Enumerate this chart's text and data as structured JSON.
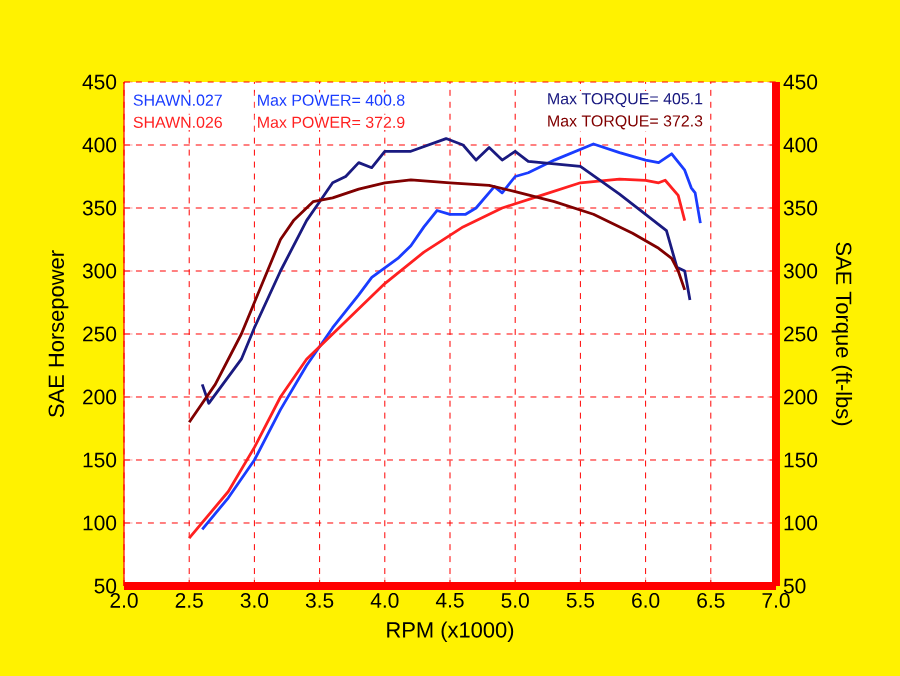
{
  "chart_data": {
    "type": "line",
    "xlabel": "RPM (x1000)",
    "ylabel": "SAE Horsepower",
    "y2label": "SAE Torque (ft-lbs)",
    "xlim": [
      2.0,
      7.0
    ],
    "xticks": [
      {
        "value": 2.0,
        "label": "2.0"
      },
      {
        "value": 2.5,
        "label": "2.5"
      },
      {
        "value": 3.0,
        "label": "3.0"
      },
      {
        "value": 3.5,
        "label": "3.5"
      },
      {
        "value": 4.0,
        "label": "4.0"
      },
      {
        "value": 4.5,
        "label": "4.5"
      },
      {
        "value": 5.0,
        "label": "5.0"
      },
      {
        "value": 5.5,
        "label": "5.5"
      },
      {
        "value": 6.0,
        "label": "6.0"
      },
      {
        "value": 6.5,
        "label": "6.5"
      },
      {
        "value": 7.0,
        "label": "7.0"
      }
    ],
    "ylim": [
      50,
      450
    ],
    "yticks": [
      50,
      100,
      150,
      200,
      250,
      300,
      350,
      400,
      450
    ],
    "y2lim": [
      50,
      450
    ],
    "y2ticks": [
      50,
      100,
      150,
      200,
      250,
      300,
      350,
      400,
      450
    ],
    "grid": true,
    "annotations": [
      "SHAWN.027",
      "Max POWER= 400.8",
      "Max TORQUE= 405.1",
      "SHAWN.026",
      "Max POWER= 372.9",
      "Max TORQUE= 372.3"
    ],
    "series": [
      {
        "color": "#1a3cff",
        "x": [
          2.6,
          2.8,
          3.0,
          3.2,
          3.4,
          3.6,
          3.8,
          3.9,
          4.1,
          4.2,
          4.3,
          4.4,
          4.5,
          4.62,
          4.7,
          4.84,
          4.9,
          5.0,
          5.1,
          5.3,
          5.6,
          5.8,
          6.0,
          6.1,
          6.2,
          6.3,
          6.35,
          6.38,
          6.42
        ],
        "values": [
          95,
          120,
          150,
          190,
          225,
          255,
          281,
          295,
          310,
          320,
          335,
          348,
          345,
          345,
          350,
          367,
          362,
          375,
          378,
          388,
          400.8,
          394,
          388,
          386,
          393,
          380,
          366,
          362,
          338
        ]
      },
      {
        "color": "#ff2020",
        "x": [
          2.5,
          2.8,
          3.0,
          3.2,
          3.4,
          3.6,
          3.8,
          4.0,
          4.3,
          4.6,
          4.9,
          5.2,
          5.5,
          5.8,
          6.0,
          6.1,
          6.15,
          6.25,
          6.3
        ],
        "values": [
          88,
          125,
          160,
          200,
          230,
          250,
          270,
          290,
          315,
          335,
          350,
          360,
          370,
          372.9,
          372,
          370,
          372,
          360,
          340
        ]
      },
      {
        "color": "#1a1a80",
        "axis": "y2",
        "x": [
          2.6,
          2.65,
          2.9,
          3.0,
          3.2,
          3.4,
          3.5,
          3.6,
          3.7,
          3.8,
          3.9,
          4.0,
          4.2,
          4.47,
          4.6,
          4.7,
          4.8,
          4.9,
          5.0,
          5.1,
          5.3,
          5.5,
          5.8,
          6.0,
          6.16,
          6.24,
          6.3,
          6.34
        ],
        "values": [
          210,
          195,
          230,
          255,
          300,
          340,
          355,
          370,
          375,
          386,
          382,
          395,
          395,
          405.1,
          400,
          388,
          398,
          388,
          395,
          387,
          385,
          383,
          361,
          345,
          332,
          303,
          300,
          277
        ]
      },
      {
        "color": "#800000",
        "axis": "y2",
        "x": [
          2.5,
          2.7,
          2.9,
          3.1,
          3.2,
          3.3,
          3.45,
          3.6,
          3.8,
          4.0,
          4.2,
          4.5,
          4.8,
          5.0,
          5.3,
          5.6,
          5.9,
          6.1,
          6.2,
          6.25,
          6.3
        ],
        "values": [
          180,
          210,
          250,
          300,
          325,
          340,
          355,
          358,
          365,
          370,
          372.3,
          370,
          368,
          363,
          355,
          345,
          330,
          318,
          310,
          300,
          285
        ]
      }
    ]
  }
}
